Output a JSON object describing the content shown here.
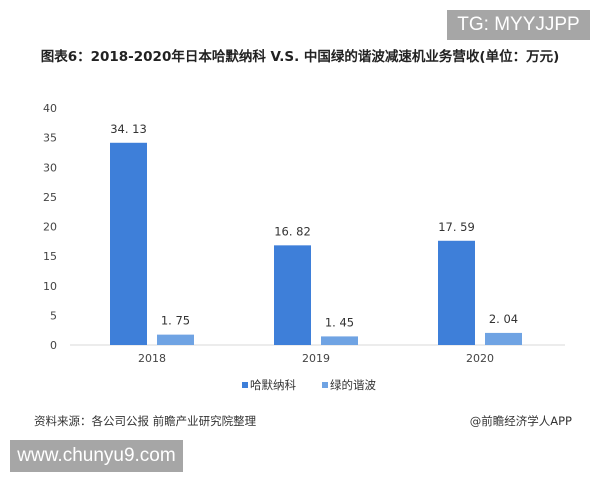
{
  "watermark_top": "TG: MYYJJPP",
  "watermark_bottom": "www.chunyu9.com",
  "source": "资料来源：各公司公报 前瞻产业研究院整理",
  "credit": "@前瞻经济学人APP",
  "chart_data": {
    "type": "bar",
    "title": "图表6：2018-2020年日本哈默纳科 V.S. 中国绿的谐波减速机业务营收(单位：万元)",
    "categories": [
      "2018",
      "2019",
      "2020"
    ],
    "series": [
      {
        "name": "哈默纳科",
        "values": [
          34.13,
          16.82,
          17.59
        ],
        "color": "#3e7fd9"
      },
      {
        "name": "绿的谐波",
        "values": [
          1.75,
          1.45,
          2.04
        ],
        "color": "#6fa3e3"
      }
    ],
    "ylim": [
      0,
      40
    ],
    "yticks": [
      0,
      5,
      10,
      15,
      20,
      25,
      30,
      35,
      40
    ],
    "grid": false,
    "legend": "bottom"
  }
}
